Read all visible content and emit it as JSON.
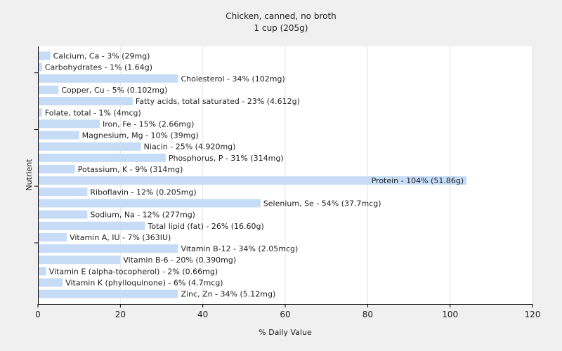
{
  "chart_data": {
    "type": "bar",
    "orientation": "horizontal",
    "title": "Chicken, canned, no broth",
    "subtitle": "1 cup (205g)",
    "xlabel": "% Daily Value",
    "ylabel": "Nutrient",
    "xlim": [
      0,
      120
    ],
    "xticks": [
      "0",
      "20",
      "40",
      "60",
      "80",
      "100",
      "120"
    ],
    "grid": true,
    "bar_color": "#c6dcf6",
    "categories": [
      "Calcium, Ca",
      "Carbohydrates",
      "Cholesterol",
      "Copper, Cu",
      "Fatty acids, total saturated",
      "Folate, total",
      "Iron, Fe",
      "Magnesium, Mg",
      "Niacin",
      "Phosphorus, P",
      "Potassium, K",
      "Protein",
      "Riboflavin",
      "Selenium, Se",
      "Sodium, Na",
      "Total lipid (fat)",
      "Vitamin A, IU",
      "Vitamin B-12",
      "Vitamin B-6",
      "Vitamin E (alpha-tocopherol)",
      "Vitamin K (phylloquinone)",
      "Zinc, Zn"
    ],
    "values": [
      3,
      1,
      34,
      5,
      23,
      1,
      15,
      10,
      25,
      31,
      9,
      104,
      12,
      54,
      12,
      26,
      7,
      34,
      20,
      2,
      6,
      34
    ],
    "labels": [
      "Calcium, Ca - 3% (29mg)",
      "Carbohydrates - 1% (1.64g)",
      "Cholesterol - 34% (102mg)",
      "Copper, Cu - 5% (0.102mg)",
      "Fatty acids, total saturated - 23% (4.612g)",
      "Folate, total - 1% (4mcg)",
      "Iron, Fe - 15% (2.66mg)",
      "Magnesium, Mg - 10% (39mg)",
      "Niacin - 25% (4.920mg)",
      "Phosphorus, P - 31% (314mg)",
      "Potassium, K - 9% (314mg)",
      "Protein - 104% (51.86g)",
      "Riboflavin - 12% (0.205mg)",
      "Selenium, Se - 54% (37.7mcg)",
      "Sodium, Na - 12% (277mg)",
      "Total lipid (fat) - 26% (16.60g)",
      "Vitamin A, IU - 7% (363IU)",
      "Vitamin B-12 - 34% (2.05mcg)",
      "Vitamin B-6 - 20% (0.390mg)",
      "Vitamin E (alpha-tocopherol) - 2% (0.66mg)",
      "Vitamin K (phylloquinone) - 6% (4.7mcg)",
      "Zinc, Zn - 34% (5.12mg)"
    ]
  }
}
